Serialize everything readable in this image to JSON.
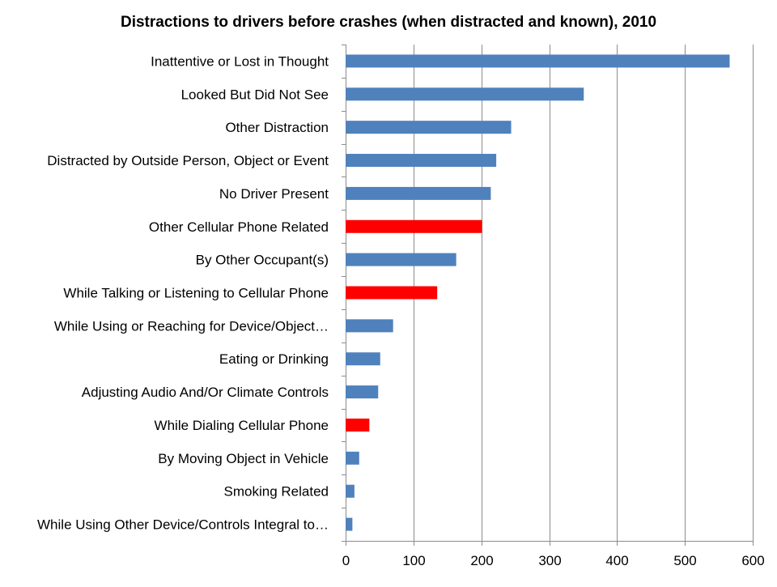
{
  "chart_data": {
    "type": "bar",
    "orientation": "horizontal",
    "title": "Distractions to drivers before crashes (when distracted and known), 2010",
    "xlabel": "",
    "ylabel": "",
    "xlim": [
      0,
      600
    ],
    "xticks": [
      0,
      100,
      200,
      300,
      400,
      500,
      600
    ],
    "grid": true,
    "legend": "none",
    "colors": {
      "default": "#4f81bd",
      "highlight": "#ff0000"
    },
    "categories": [
      "Inattentive or Lost in Thought",
      "Looked But Did Not See",
      "Other Distraction",
      "Distracted by Outside Person, Object or Event",
      "No Driver Present",
      "Other Cellular Phone Related",
      "By Other Occupant(s)",
      "While Talking or Listening to Cellular Phone",
      "While Using or Reaching for Device/Object…",
      "Eating or Drinking",
      "Adjusting Audio And/Or Climate Controls",
      "While Dialing Cellular Phone",
      "By Moving Object in Vehicle",
      "Smoking Related",
      "While Using Other Device/Controls Integral to…"
    ],
    "values": [
      566,
      351,
      244,
      222,
      214,
      201,
      163,
      135,
      70,
      51,
      48,
      35,
      20,
      13,
      10
    ],
    "highlighted": [
      false,
      false,
      false,
      false,
      false,
      true,
      false,
      true,
      false,
      false,
      false,
      true,
      false,
      false,
      false
    ]
  }
}
